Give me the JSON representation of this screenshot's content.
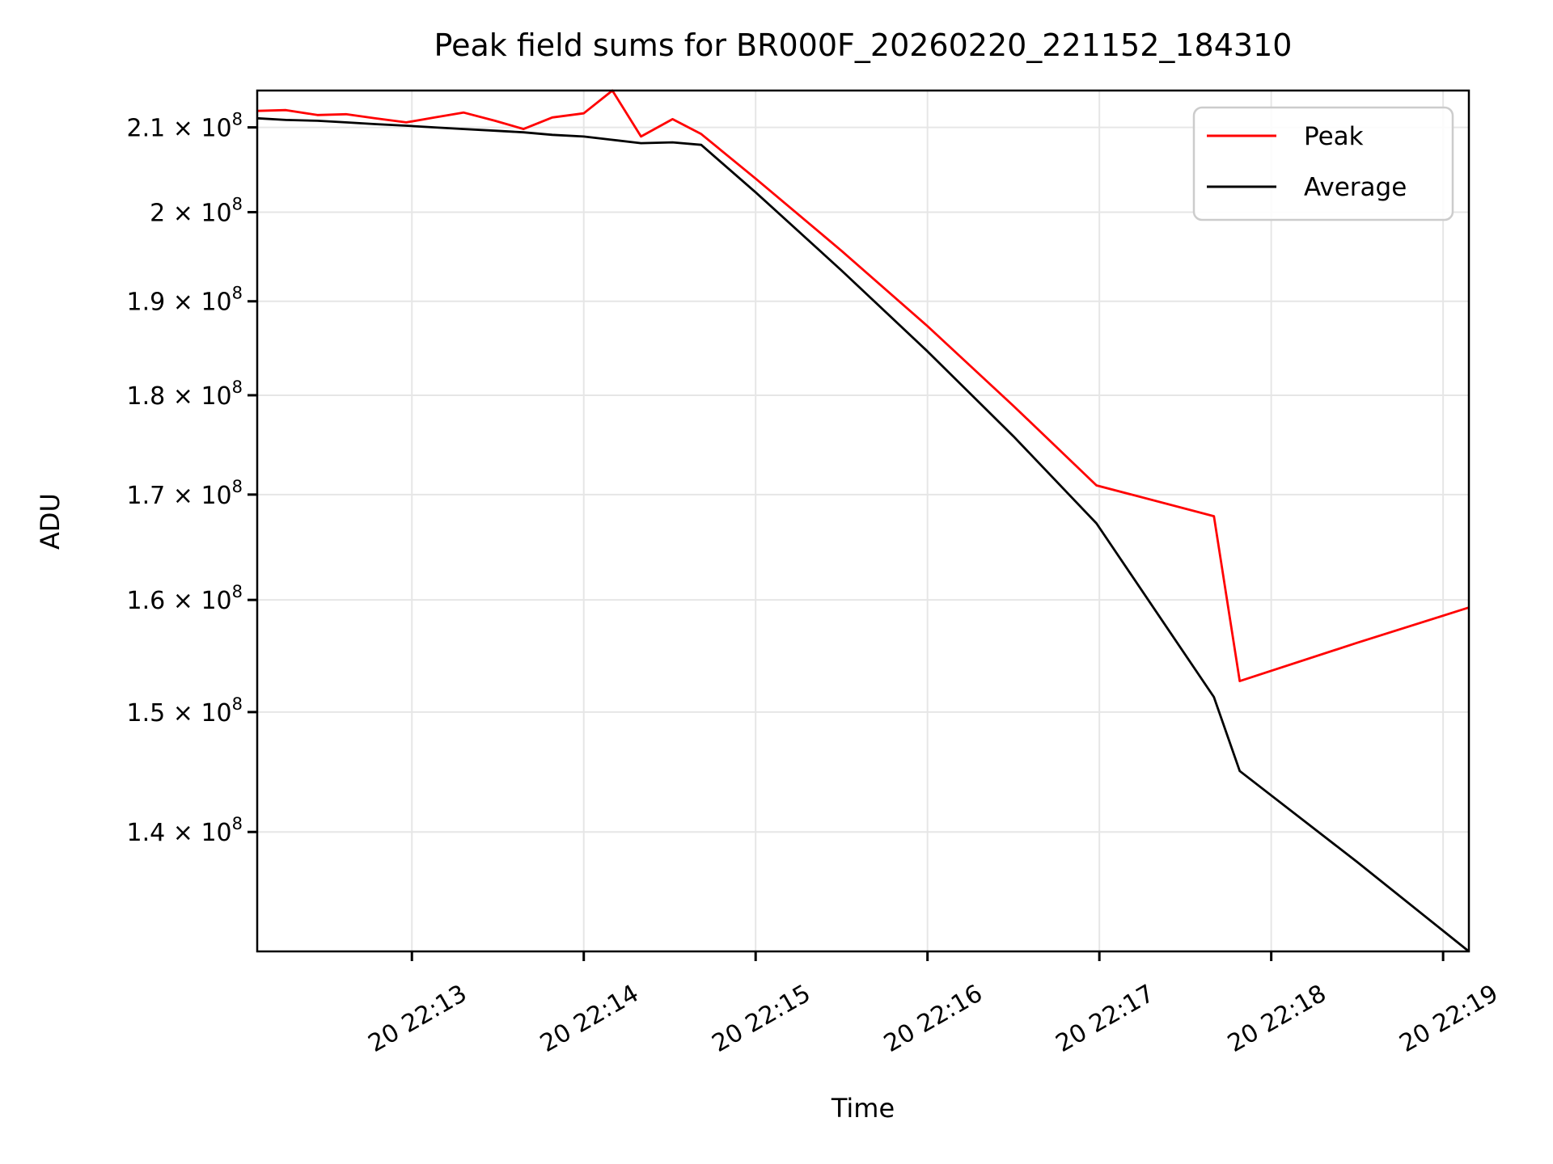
{
  "chart_data": {
    "type": "line",
    "title": "Peak field sums for BR000F_20260220_221152_184310",
    "xlabel": "Time",
    "ylabel": "ADU",
    "yscale": "log",
    "grid": true,
    "legend_position": "upper right",
    "legend_entries": [
      "Peak",
      "Average"
    ],
    "x_tick_labels": [
      "20 22:13",
      "20 22:14",
      "20 22:15",
      "20 22:16",
      "20 22:17",
      "20 22:18",
      "20 22:19"
    ],
    "x_tick_times": [
      "22:13:00",
      "22:14:00",
      "22:15:00",
      "22:16:00",
      "22:17:00",
      "22:18:00",
      "22:19:00"
    ],
    "y_tick_values": [
      210000000,
      200000000,
      190000000,
      180000000,
      170000000,
      160000000,
      150000000,
      140000000
    ],
    "y_tick_labels": [
      {
        "base": "2.1 × 10",
        "exp": "8"
      },
      {
        "base": "2 × 10",
        "exp": "8"
      },
      {
        "base": "1.9 × 10",
        "exp": "8"
      },
      {
        "base": "1.8 × 10",
        "exp": "8"
      },
      {
        "base": "1.7 × 10",
        "exp": "8"
      },
      {
        "base": "1.6 × 10",
        "exp": "8"
      },
      {
        "base": "1.5 × 10",
        "exp": "8"
      },
      {
        "base": "1.4 × 10",
        "exp": "8"
      }
    ],
    "xlim": [
      "22:12:06",
      "22:19:09"
    ],
    "ylim": [
      130700000,
      214500000
    ],
    "x": [
      "22:12:06",
      "22:12:16",
      "22:12:27",
      "22:12:37",
      "22:12:47",
      "22:12:58",
      "22:13:08",
      "22:13:18",
      "22:13:29",
      "22:13:39",
      "22:13:49",
      "22:14:00",
      "22:14:10",
      "22:14:20",
      "22:14:31",
      "22:14:41",
      "22:15:00",
      "22:15:30",
      "22:16:00",
      "22:16:30",
      "22:16:59",
      "22:17:40",
      "22:17:49",
      "22:18:30",
      "22:19:09"
    ],
    "series": [
      {
        "name": "Peak",
        "color": "#ff0000",
        "values": [
          212000000,
          212100000,
          211500000,
          211600000,
          211100000,
          210600000,
          211200000,
          211800000,
          210800000,
          209800000,
          211200000,
          211700000,
          214500000,
          208900000,
          211000000,
          209200000,
          203900000,
          195600000,
          187300000,
          178900000,
          170900000,
          167900000,
          152700000,
          156100000,
          159300000
        ]
      },
      {
        "name": "Average",
        "color": "#000000",
        "values": [
          211100000,
          210900000,
          210800000,
          210600000,
          210400000,
          210200000,
          210000000,
          209800000,
          209600000,
          209400000,
          209100000,
          208900000,
          208500000,
          208100000,
          208200000,
          207900000,
          202300000,
          193400000,
          184600000,
          175800000,
          167200000,
          151300000,
          145000000,
          137600000,
          130700000
        ]
      }
    ]
  },
  "colors": {
    "background": "#ffffff",
    "grid": "#e6e6e6",
    "spine": "#000000",
    "tick_text": "#000000",
    "legend_border": "#cccccc",
    "legend_background": "#ffffff"
  }
}
